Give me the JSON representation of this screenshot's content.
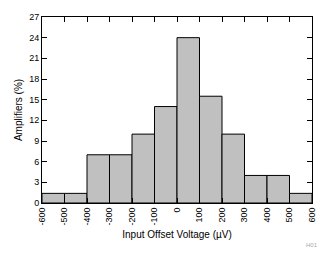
{
  "chart_data": {
    "type": "histogram",
    "x_label": "Input Offset Voltage (µV)",
    "y_label": "Amplifiers (%)",
    "bins": [
      -600,
      -500,
      -400,
      -300,
      -200,
      -100,
      0,
      100,
      200,
      300,
      400,
      500,
      600
    ],
    "values": [
      1.4,
      1.4,
      7,
      7,
      10,
      14,
      24,
      15.5,
      10,
      4,
      4,
      1.4
    ],
    "color": "#c0c0c0",
    "xlim": [
      -600,
      600
    ],
    "xticks": [
      -600,
      -500,
      -400,
      -300,
      -200,
      -100,
      0,
      100,
      200,
      300,
      400,
      500,
      600
    ],
    "ylim": [
      0,
      27
    ],
    "yticks": [
      0,
      3,
      6,
      9,
      12,
      15,
      18,
      21,
      24,
      27
    ],
    "grid": false,
    "annotations": [
      "H01"
    ]
  }
}
